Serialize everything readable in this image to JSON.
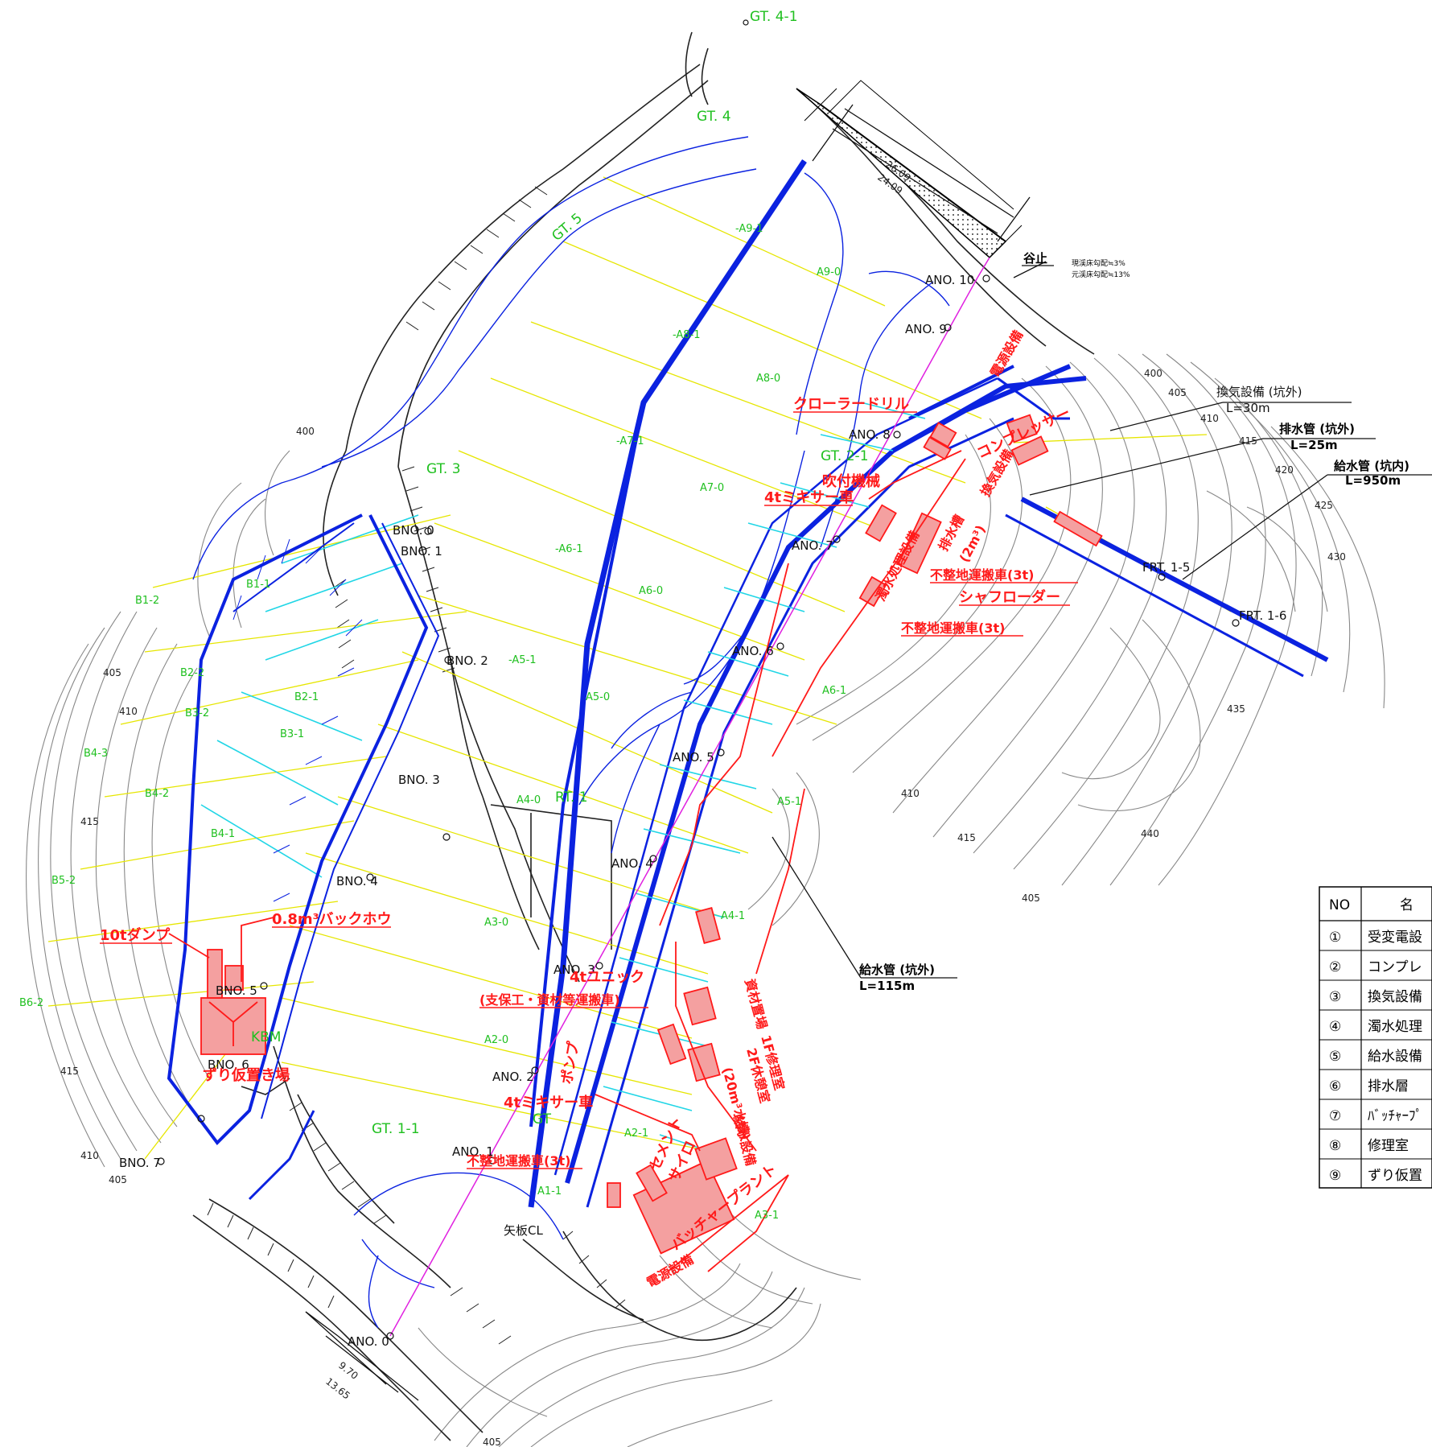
{
  "colors": {
    "tunnel": "#0b22e0",
    "survey": "#e6e600",
    "cross": "#21d6e6",
    "equip": "#ff1a1a",
    "equip_fill": "#f4a0a0",
    "green_pt": "#20c020",
    "magenta": "#e020e0",
    "terrain": "#222222",
    "contour": "#777777"
  },
  "stations_black": [
    {
      "id": "ano0",
      "text": "ANO. 0"
    },
    {
      "id": "ano1",
      "text": "ANO. 1"
    },
    {
      "id": "ano2",
      "text": "ANO. 2"
    },
    {
      "id": "ano3",
      "text": "ANO. 3"
    },
    {
      "id": "ano4",
      "text": "ANO. 4"
    },
    {
      "id": "ano5",
      "text": "ANO. 5"
    },
    {
      "id": "ano6",
      "text": "ANO. 6"
    },
    {
      "id": "ano7",
      "text": "ANO. 7"
    },
    {
      "id": "ano8",
      "text": "ANO. 8"
    },
    {
      "id": "ano9",
      "text": "ANO. 9"
    },
    {
      "id": "ano10",
      "text": "ANO. 10"
    },
    {
      "id": "bno0",
      "text": "BNO. 0"
    },
    {
      "id": "bno1",
      "text": "BNO. 1"
    },
    {
      "id": "bno2",
      "text": "BNO. 2"
    },
    {
      "id": "bno3",
      "text": "BNO. 3"
    },
    {
      "id": "bno4",
      "text": "BNO. 4"
    },
    {
      "id": "bno5",
      "text": "BNO. 5"
    },
    {
      "id": "bno6",
      "text": "BNO. 6"
    },
    {
      "id": "bno7",
      "text": "BNO. 7"
    },
    {
      "id": "frt15",
      "text": "FRT. 1-5"
    },
    {
      "id": "frt16",
      "text": "FRT. 1-6"
    },
    {
      "id": "yagicl",
      "text": "矢板CL"
    },
    {
      "id": "tanidome",
      "text": "谷止"
    }
  ],
  "stations_green": [
    {
      "id": "gt41",
      "text": "GT. 4-1"
    },
    {
      "id": "gt4",
      "text": "GT. 4"
    },
    {
      "id": "gt5",
      "text": "GT. 5"
    },
    {
      "id": "gt3",
      "text": "GT. 3"
    },
    {
      "id": "gt21",
      "text": "GT. 2-1"
    },
    {
      "id": "gt11",
      "text": "GT. 1-1"
    },
    {
      "id": "gt1",
      "text": "GT"
    },
    {
      "id": "rt1",
      "text": "RT. 1"
    },
    {
      "id": "kbm",
      "text": "KBM"
    },
    {
      "id": "a91",
      "text": "-A9-1"
    },
    {
      "id": "a90",
      "text": "A9-0"
    },
    {
      "id": "a81",
      "text": "-A8-1"
    },
    {
      "id": "a80",
      "text": "A8-0"
    },
    {
      "id": "a71",
      "text": "-A7-1"
    },
    {
      "id": "a70",
      "text": "A7-0"
    },
    {
      "id": "a61",
      "text": "-A6-1"
    },
    {
      "id": "a60",
      "text": "A6-0"
    },
    {
      "id": "a51",
      "text": "-A5-1"
    },
    {
      "id": "a50",
      "text": "A5-0"
    },
    {
      "id": "a40",
      "text": "A4-0"
    },
    {
      "id": "a30",
      "text": "A3-0"
    },
    {
      "id": "a20",
      "text": "A2-0"
    },
    {
      "id": "a21",
      "text": "A2-1"
    },
    {
      "id": "a11",
      "text": "A1-1"
    },
    {
      "id": "a31",
      "text": "A3-1"
    },
    {
      "id": "a41",
      "text": "A4-1"
    },
    {
      "id": "a51b",
      "text": "A5-1"
    },
    {
      "id": "a61b",
      "text": "A6-1"
    },
    {
      "id": "b12",
      "text": "B1-2"
    },
    {
      "id": "b11",
      "text": "B1-1"
    },
    {
      "id": "b22",
      "text": "B2-2"
    },
    {
      "id": "b21",
      "text": "B2-1"
    },
    {
      "id": "b32",
      "text": "B3-2"
    },
    {
      "id": "b31",
      "text": "B3-1"
    },
    {
      "id": "b42",
      "text": "B4-2"
    },
    {
      "id": "b41",
      "text": "B4-1"
    },
    {
      "id": "b43",
      "text": "B4-3"
    },
    {
      "id": "b52",
      "text": "B5-2"
    },
    {
      "id": "b62",
      "text": "B6-2"
    }
  ],
  "equipment": [
    {
      "id": "crawler",
      "text": "クローラードリル"
    },
    {
      "id": "fukitsuke",
      "text": "吹付機械"
    },
    {
      "id": "mixer4a",
      "text": "4tミキサー車"
    },
    {
      "id": "fuseichi3a",
      "text": "不整地運搬車(3t)"
    },
    {
      "id": "shaft",
      "text": "シャフローダー"
    },
    {
      "id": "fuseichi3b",
      "text": "不整地運搬車(3t)"
    },
    {
      "id": "dump10",
      "text": "10tダンプ"
    },
    {
      "id": "backhoe",
      "text": "0.8m³バックホウ"
    },
    {
      "id": "zuri",
      "text": "ずり仮置き場"
    },
    {
      "id": "unic4",
      "text": "4tユニック"
    },
    {
      "id": "unic4sub",
      "text": "(支保工・資材等運搬車)"
    },
    {
      "id": "mixer4b",
      "text": "4tミキサー車"
    },
    {
      "id": "fuseichi3c",
      "text": "不整地運搬車(3t)"
    },
    {
      "id": "pump",
      "text": "ポンプ"
    },
    {
      "id": "cement",
      "text": "セメント"
    },
    {
      "id": "silo",
      "text": "サイロ"
    },
    {
      "id": "batcher",
      "text": "バッチャープラント"
    },
    {
      "id": "denden",
      "text": "電源設備"
    },
    {
      "id": "shizai",
      "text": "資材置場"
    },
    {
      "id": "shuri1",
      "text": "1F修理室"
    },
    {
      "id": "shuri2",
      "text": "2F休憩室"
    },
    {
      "id": "kyusui",
      "text": "給水設備"
    },
    {
      "id": "kyusui2",
      "text": "(20m³水槽)"
    },
    {
      "id": "denden2",
      "text": "電源設備"
    },
    {
      "id": "compressor",
      "text": "コンプレッサー"
    },
    {
      "id": "kanki",
      "text": "換気設備"
    },
    {
      "id": "dakusui",
      "text": "濁水処理設備"
    },
    {
      "id": "haisui",
      "text": "排水槽"
    },
    {
      "id": "haisui2",
      "text": "(2m³)"
    }
  ],
  "callouts": [
    {
      "id": "kanki_out",
      "title": "換気設備 (坑外)",
      "length": "L=30m"
    },
    {
      "id": "haisui_out",
      "title": "排水管 (坑外)",
      "length": "L=25m"
    },
    {
      "id": "kyusui_in",
      "title": "給水管 (坑内)",
      "length": "L=950m"
    },
    {
      "id": "kyusui_out",
      "title": "給水管 (坑外)",
      "length": "L=115m"
    }
  ],
  "notes": {
    "line1": "現渓床勾配≒3%",
    "line2": "元渓床勾配≒13%"
  },
  "dimensions": {
    "top1": "26.09",
    "top2": "24.09",
    "bot1": "9.70",
    "bot2": "13.65"
  },
  "contours": [
    "400",
    "405",
    "410",
    "415",
    "420",
    "425",
    "430",
    "435",
    "440"
  ],
  "legend": {
    "header_no": "NO",
    "header_name": "名",
    "rows": [
      {
        "no": "①",
        "name": "受変電設"
      },
      {
        "no": "②",
        "name": "コンプレ"
      },
      {
        "no": "③",
        "name": "換気設備"
      },
      {
        "no": "④",
        "name": "濁水処理"
      },
      {
        "no": "⑤",
        "name": "給水設備"
      },
      {
        "no": "⑥",
        "name": "排水層"
      },
      {
        "no": "⑦",
        "name": "ﾊﾞｯﾁｬｰﾌﾟ"
      },
      {
        "no": "⑧",
        "name": "修理室"
      },
      {
        "no": "⑨",
        "name": "ずり仮置"
      }
    ]
  }
}
